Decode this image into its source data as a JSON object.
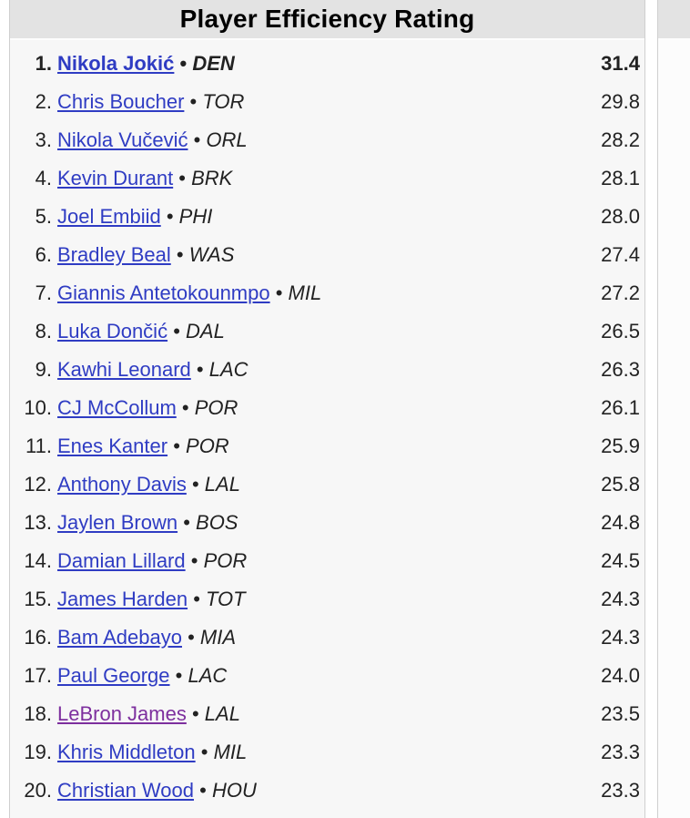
{
  "table": {
    "title": "Player Efficiency Rating",
    "separator": "•",
    "columns": [
      "rank",
      "player",
      "team",
      "value"
    ],
    "rows": [
      {
        "rank": "1",
        "player": "Nikola Jokić",
        "team": "DEN",
        "value": "31.4",
        "bold": true,
        "visited": false
      },
      {
        "rank": "2",
        "player": "Chris Boucher",
        "team": "TOR",
        "value": "29.8",
        "bold": false,
        "visited": false
      },
      {
        "rank": "3",
        "player": "Nikola Vučević",
        "team": "ORL",
        "value": "28.2",
        "bold": false,
        "visited": false
      },
      {
        "rank": "4",
        "player": "Kevin Durant",
        "team": "BRK",
        "value": "28.1",
        "bold": false,
        "visited": false
      },
      {
        "rank": "5",
        "player": "Joel Embiid",
        "team": "PHI",
        "value": "28.0",
        "bold": false,
        "visited": false
      },
      {
        "rank": "6",
        "player": "Bradley Beal",
        "team": "WAS",
        "value": "27.4",
        "bold": false,
        "visited": false
      },
      {
        "rank": "7",
        "player": "Giannis Antetokounmpo",
        "team": "MIL",
        "value": "27.2",
        "bold": false,
        "visited": false
      },
      {
        "rank": "8",
        "player": "Luka Dončić",
        "team": "DAL",
        "value": "26.5",
        "bold": false,
        "visited": false
      },
      {
        "rank": "9",
        "player": "Kawhi Leonard",
        "team": "LAC",
        "value": "26.3",
        "bold": false,
        "visited": false
      },
      {
        "rank": "10",
        "player": "CJ McCollum",
        "team": "POR",
        "value": "26.1",
        "bold": false,
        "visited": false
      },
      {
        "rank": "11",
        "player": "Enes Kanter",
        "team": "POR",
        "value": "25.9",
        "bold": false,
        "visited": false
      },
      {
        "rank": "12",
        "player": "Anthony Davis",
        "team": "LAL",
        "value": "25.8",
        "bold": false,
        "visited": false
      },
      {
        "rank": "13",
        "player": "Jaylen Brown",
        "team": "BOS",
        "value": "24.8",
        "bold": false,
        "visited": false
      },
      {
        "rank": "14",
        "player": "Damian Lillard",
        "team": "POR",
        "value": "24.5",
        "bold": false,
        "visited": false
      },
      {
        "rank": "15",
        "player": "James Harden",
        "team": "TOT",
        "value": "24.3",
        "bold": false,
        "visited": false
      },
      {
        "rank": "16",
        "player": "Bam Adebayo",
        "team": "MIA",
        "value": "24.3",
        "bold": false,
        "visited": false
      },
      {
        "rank": "17",
        "player": "Paul George",
        "team": "LAC",
        "value": "24.0",
        "bold": false,
        "visited": false
      },
      {
        "rank": "18",
        "player": "LeBron James",
        "team": "LAL",
        "value": "23.5",
        "bold": false,
        "visited": true
      },
      {
        "rank": "19",
        "player": "Khris Middleton",
        "team": "MIL",
        "value": "23.3",
        "bold": false,
        "visited": false
      },
      {
        "rank": "20",
        "player": "Christian Wood",
        "team": "HOU",
        "value": "23.3",
        "bold": false,
        "visited": false
      }
    ]
  },
  "colors": {
    "page_bg": "#ffffff",
    "header_bg": "#e3e3e3",
    "body_bg": "#f7f7f7",
    "side_body_bg": "#fcfcfc",
    "border": "#cfcfcf",
    "text": "#222222",
    "link": "#2f3cc3",
    "visited_link": "#7d2f9e"
  }
}
